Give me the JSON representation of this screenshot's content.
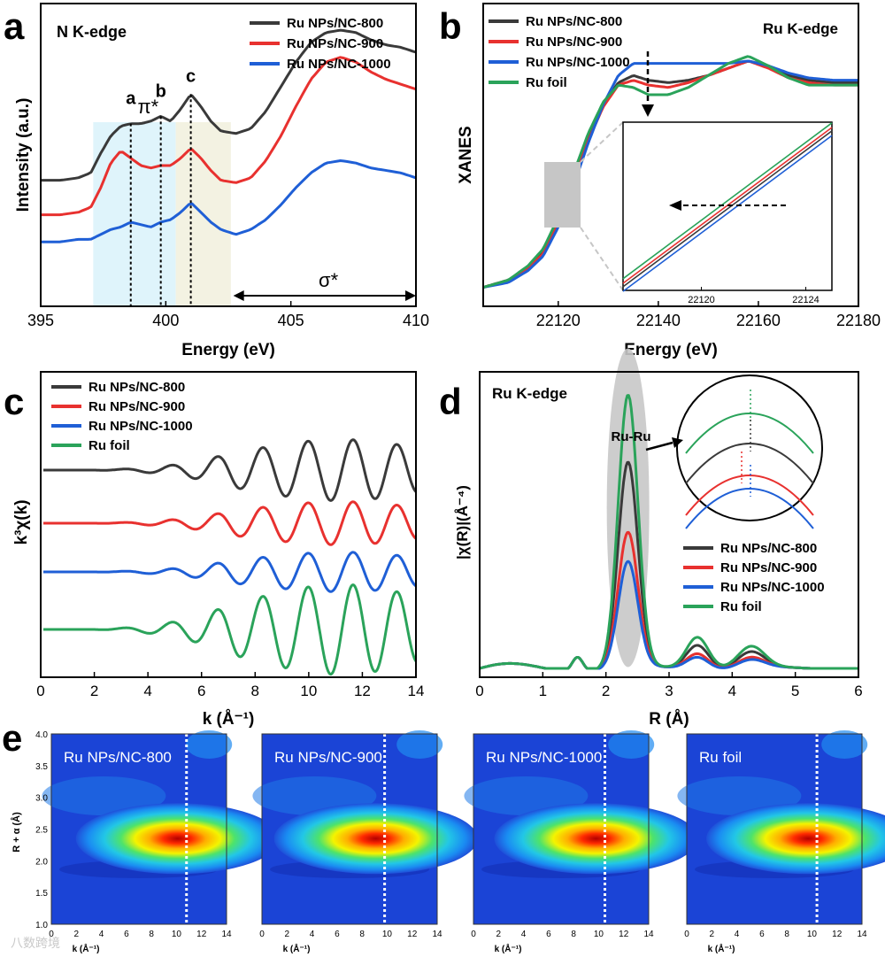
{
  "colors": {
    "ncb800": "#3a3a3a",
    "ncb900": "#e8312f",
    "ncb1000": "#1f5fd6",
    "foil": "#2aa35a"
  },
  "panel_labels": {
    "a": "a",
    "b": "b",
    "c": "c",
    "d": "d",
    "e": "e"
  },
  "watermark": "八数跨境",
  "chart_data": [
    {
      "panel": "a",
      "type": "line",
      "annotation": "N K-edge",
      "xlabel": "Energy (eV)",
      "ylabel": "Intensity (a.u.)",
      "xlim": [
        395,
        410
      ],
      "xticks": [
        "395",
        "400",
        "405",
        "410"
      ],
      "peak_labels": {
        "pi": "π*",
        "sigma": "σ*",
        "a": "a",
        "b": "b",
        "c": "c"
      },
      "peak_positions": {
        "a": 398.6,
        "b": 399.8,
        "c": 401.0
      },
      "shaded_regions": [
        [
          397.1,
          400.4
        ],
        [
          400.4,
          402.6
        ]
      ],
      "sigma_range": [
        402.7,
        410
      ],
      "series": [
        {
          "name": "Ru NPs/NC-800",
          "color": "#3a3a3a",
          "x": [
            395,
            395.8,
            396.5,
            397.0,
            397.4,
            397.8,
            398.2,
            398.6,
            399.0,
            399.4,
            399.8,
            400.2,
            400.6,
            401.0,
            401.4,
            401.8,
            402.2,
            402.8,
            403.4,
            404.0,
            404.6,
            405.2,
            405.8,
            406.4,
            407.0,
            407.6,
            408.2,
            408.8,
            409.4,
            410
          ],
          "y": [
            0.44,
            0.44,
            0.45,
            0.47,
            0.55,
            0.62,
            0.66,
            0.67,
            0.67,
            0.68,
            0.7,
            0.68,
            0.73,
            0.79,
            0.74,
            0.68,
            0.64,
            0.63,
            0.65,
            0.72,
            0.82,
            0.92,
            1.0,
            1.04,
            1.05,
            1.04,
            1.01,
            0.99,
            0.98,
            0.96
          ]
        },
        {
          "name": "Ru NPs/NC-900",
          "color": "#e8312f",
          "x": [
            395,
            395.8,
            396.5,
            397.0,
            397.4,
            397.8,
            398.2,
            398.6,
            399.0,
            399.4,
            399.8,
            400.2,
            400.6,
            401.0,
            401.4,
            401.8,
            402.2,
            402.8,
            403.4,
            404.0,
            404.6,
            405.2,
            405.8,
            406.4,
            407.0,
            407.6,
            408.2,
            408.8,
            409.4,
            410
          ],
          "y": [
            0.3,
            0.3,
            0.31,
            0.33,
            0.41,
            0.51,
            0.56,
            0.53,
            0.5,
            0.49,
            0.5,
            0.5,
            0.53,
            0.57,
            0.53,
            0.48,
            0.44,
            0.43,
            0.45,
            0.52,
            0.62,
            0.74,
            0.85,
            0.92,
            0.94,
            0.92,
            0.88,
            0.85,
            0.83,
            0.81
          ]
        },
        {
          "name": "Ru NPs/NC-1000",
          "color": "#1f5fd6",
          "x": [
            395,
            395.8,
            396.5,
            397.0,
            397.4,
            397.8,
            398.2,
            398.6,
            399.0,
            399.4,
            399.8,
            400.2,
            400.6,
            401.0,
            401.4,
            401.8,
            402.2,
            402.8,
            403.4,
            404.0,
            404.6,
            405.2,
            405.8,
            406.4,
            407.0,
            407.6,
            408.2,
            408.8,
            409.4,
            410
          ],
          "y": [
            0.19,
            0.19,
            0.2,
            0.2,
            0.22,
            0.24,
            0.25,
            0.27,
            0.26,
            0.25,
            0.27,
            0.28,
            0.31,
            0.35,
            0.31,
            0.27,
            0.24,
            0.22,
            0.24,
            0.28,
            0.34,
            0.41,
            0.47,
            0.51,
            0.52,
            0.51,
            0.49,
            0.48,
            0.47,
            0.45
          ]
        }
      ]
    },
    {
      "panel": "b",
      "type": "line",
      "annotation": "Ru K-edge",
      "xlabel": "Energy (eV)",
      "ylabel": "XANES",
      "xlim": [
        22105,
        22180
      ],
      "xticks": [
        "22120",
        "22140",
        "22160",
        "22180"
      ],
      "inset": {
        "xticks": [
          "22120",
          "22124"
        ],
        "xlim": [
          22117,
          22125
        ]
      },
      "series": [
        {
          "name": "Ru NPs/NC-800",
          "color": "#3a3a3a",
          "x": [
            22105,
            22110,
            22114,
            22117,
            22120,
            22123,
            22126,
            22129,
            22132,
            22135,
            22138,
            22142,
            22146,
            22150,
            22154,
            22158,
            22162,
            22166,
            22170,
            22175,
            22180
          ],
          "y": [
            0.02,
            0.05,
            0.1,
            0.17,
            0.3,
            0.47,
            0.64,
            0.78,
            0.87,
            0.9,
            0.88,
            0.87,
            0.88,
            0.9,
            0.93,
            0.96,
            0.94,
            0.9,
            0.88,
            0.87,
            0.87
          ]
        },
        {
          "name": "Ru NPs/NC-900",
          "color": "#e8312f",
          "x": [
            22105,
            22110,
            22114,
            22117,
            22120,
            22123,
            22126,
            22129,
            22132,
            22135,
            22138,
            22142,
            22146,
            22150,
            22154,
            22158,
            22162,
            22166,
            22170,
            22175,
            22180
          ],
          "y": [
            0.02,
            0.05,
            0.1,
            0.16,
            0.29,
            0.46,
            0.63,
            0.77,
            0.86,
            0.88,
            0.86,
            0.85,
            0.87,
            0.9,
            0.93,
            0.96,
            0.93,
            0.89,
            0.87,
            0.86,
            0.86
          ]
        },
        {
          "name": "Ru NPs/NC-1000",
          "color": "#1f5fd6",
          "x": [
            22105,
            22110,
            22114,
            22117,
            22120,
            22123,
            22126,
            22129,
            22132,
            22135,
            22138,
            22142,
            22146,
            22150,
            22154,
            22158,
            22162,
            22166,
            22170,
            22175,
            22180
          ],
          "y": [
            0.02,
            0.04,
            0.09,
            0.15,
            0.27,
            0.44,
            0.62,
            0.78,
            0.9,
            0.95,
            0.95,
            0.95,
            0.95,
            0.95,
            0.95,
            0.96,
            0.94,
            0.91,
            0.89,
            0.88,
            0.88
          ]
        },
        {
          "name": "Ru foil",
          "color": "#2aa35a",
          "x": [
            22105,
            22110,
            22114,
            22117,
            22120,
            22123,
            22126,
            22129,
            22132,
            22135,
            22138,
            22142,
            22146,
            22150,
            22154,
            22158,
            22162,
            22166,
            22170,
            22175,
            22180
          ],
          "y": [
            0.02,
            0.05,
            0.11,
            0.18,
            0.31,
            0.49,
            0.66,
            0.79,
            0.86,
            0.85,
            0.82,
            0.82,
            0.85,
            0.9,
            0.95,
            0.98,
            0.94,
            0.89,
            0.86,
            0.86,
            0.86
          ]
        }
      ]
    },
    {
      "panel": "c",
      "type": "line",
      "xlabel": "k (Å⁻¹)",
      "ylabel": "k³χ(k)",
      "xlim": [
        0,
        14
      ],
      "xticks": [
        "0",
        "2",
        "4",
        "6",
        "8",
        "10",
        "12",
        "14"
      ],
      "series": [
        {
          "name": "Ru NPs/NC-800",
          "color": "#3a3a3a",
          "offset": 3.0,
          "amplitude": 0.85
        },
        {
          "name": "Ru NPs/NC-900",
          "color": "#e8312f",
          "offset": 2.0,
          "amplitude": 0.6
        },
        {
          "name": "Ru NPs/NC-1000",
          "color": "#1f5fd6",
          "offset": 1.1,
          "amplitude": 0.55
        },
        {
          "name": "Ru foil",
          "color": "#2aa35a",
          "offset": 0.0,
          "amplitude": 1.25
        }
      ]
    },
    {
      "panel": "d",
      "type": "line",
      "annotation": "Ru K-edge",
      "peak_label": "Ru-Ru",
      "xlabel": "R (Å)",
      "ylabel": "|χ(R)|(Å⁻⁴)",
      "xlim": [
        0,
        6
      ],
      "xticks": [
        "0",
        "1",
        "2",
        "3",
        "4",
        "5",
        "6"
      ],
      "series": [
        {
          "name": "Ru NPs/NC-800",
          "color": "#3a3a3a",
          "peak": 0.7
        },
        {
          "name": "Ru NPs/NC-900",
          "color": "#e8312f",
          "peak": 0.46
        },
        {
          "name": "Ru NPs/NC-1000",
          "color": "#1f5fd6",
          "peak": 0.36
        },
        {
          "name": "Ru foil",
          "color": "#2aa35a",
          "peak": 0.93
        }
      ]
    },
    {
      "panel": "e",
      "type": "heatmap",
      "xlabel": "k (Å⁻¹)",
      "ylabel": "R + α (Å)",
      "xticks": [
        "0",
        "2",
        "4",
        "6",
        "8",
        "10",
        "12",
        "14"
      ],
      "yticks": [
        "1.0",
        "1.5",
        "2.0",
        "2.5",
        "3.0",
        "3.5",
        "4.0"
      ],
      "xlim": [
        0,
        14
      ],
      "ylim": [
        1.0,
        4.0
      ],
      "maps": [
        {
          "name": "Ru NPs/NC-800",
          "max_k": 10.8,
          "max_r": 2.35
        },
        {
          "name": "Ru NPs/NC-900",
          "max_k": 9.8,
          "max_r": 2.35
        },
        {
          "name": "Ru NPs/NC-1000",
          "max_k": 10.5,
          "max_r": 2.35
        },
        {
          "name": "Ru foil",
          "max_k": 10.4,
          "max_r": 2.35
        }
      ]
    }
  ]
}
